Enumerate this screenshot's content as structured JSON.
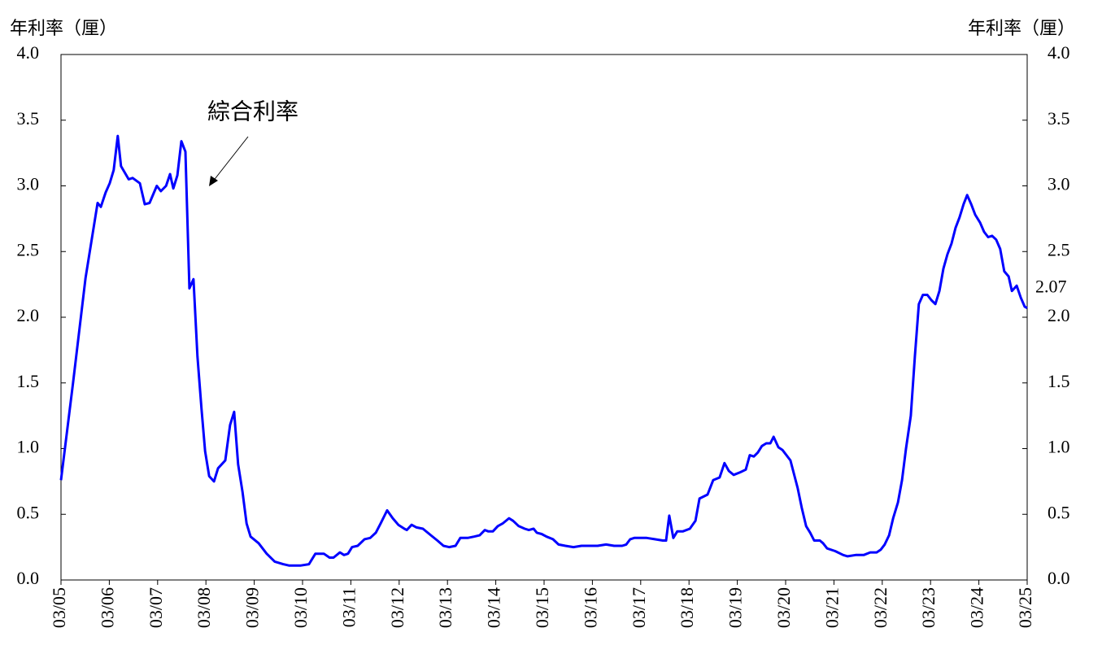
{
  "chart_data": {
    "type": "line",
    "ylabel": "年利率（厘）",
    "y2label": "年利率（厘）",
    "xlim": [
      0,
      240
    ],
    "xticks": [
      {
        "value": 0,
        "label": "03/05"
      },
      {
        "value": 12,
        "label": "03/06"
      },
      {
        "value": 24,
        "label": "03/07"
      },
      {
        "value": 36,
        "label": "03/08"
      },
      {
        "value": 48,
        "label": "03/09"
      },
      {
        "value": 60,
        "label": "03/10"
      },
      {
        "value": 72,
        "label": "03/11"
      },
      {
        "value": 84,
        "label": "03/12"
      },
      {
        "value": 96,
        "label": "03/13"
      },
      {
        "value": 108,
        "label": "03/14"
      },
      {
        "value": 120,
        "label": "03/15"
      },
      {
        "value": 132,
        "label": "03/16"
      },
      {
        "value": 144,
        "label": "03/17"
      },
      {
        "value": 156,
        "label": "03/18"
      },
      {
        "value": 168,
        "label": "03/19"
      },
      {
        "value": 180,
        "label": "03/20"
      },
      {
        "value": 192,
        "label": "03/21"
      },
      {
        "value": 204,
        "label": "03/22"
      },
      {
        "value": 216,
        "label": "03/23"
      },
      {
        "value": 228,
        "label": "03/24"
      },
      {
        "value": 240,
        "label": "03/25"
      }
    ],
    "ylim": [
      0,
      4
    ],
    "yticks": [
      {
        "value": 0,
        "label": "0.0"
      },
      {
        "value": 0.5,
        "label": "0.5"
      },
      {
        "value": 1,
        "label": "1.0"
      },
      {
        "value": 1.5,
        "label": "1.5"
      },
      {
        "value": 2,
        "label": "2.0"
      },
      {
        "value": 2.5,
        "label": "2.5"
      },
      {
        "value": 3,
        "label": "3.0"
      },
      {
        "value": 3.5,
        "label": "3.5"
      },
      {
        "value": 4,
        "label": "4.0"
      }
    ],
    "y2lim": [
      0,
      4
    ],
    "y2ticks": [
      {
        "value": 0,
        "label": "0.0"
      },
      {
        "value": 0.5,
        "label": "0.5"
      },
      {
        "value": 1,
        "label": "1.0"
      },
      {
        "value": 1.5,
        "label": "1.5"
      },
      {
        "value": 2,
        "label": "2.0"
      },
      {
        "value": 2.5,
        "label": "2.5"
      },
      {
        "value": 3,
        "label": "3.0"
      },
      {
        "value": 3.5,
        "label": "3.5"
      },
      {
        "value": 4,
        "label": "4.0"
      }
    ],
    "series": [
      {
        "name": "綜合利率",
        "color": "#0000ff",
        "end_label": "2.07",
        "x": [
          0,
          3.0,
          6.1,
          9.1,
          9.9,
          11.1,
          12.1,
          13.1,
          14.1,
          14.9,
          16.8,
          17.8,
          19.6,
          20.8,
          22.0,
          23.8,
          24.8,
          26.1,
          27.1,
          27.9,
          28.9,
          29.9,
          30.9,
          31.9,
          32.9,
          33.9,
          34.9,
          35.8,
          36.8,
          38.0,
          39.0,
          40.8,
          42.0,
          43.0,
          44.0,
          45.1,
          46.1,
          47.1,
          49.1,
          51.1,
          53.1,
          55.2,
          56.6,
          59.6,
          61.6,
          63.2,
          65.3,
          66.7,
          67.7,
          69.3,
          70.3,
          71.3,
          72.3,
          73.7,
          75.4,
          76.8,
          78.2,
          79.4,
          81.0,
          82.4,
          83.8,
          85.3,
          85.9,
          87.1,
          88.3,
          89.9,
          91.9,
          93.5,
          95.0,
          96.4,
          98.0,
          99.2,
          101.0,
          102.6,
          104.0,
          105.3,
          106.1,
          107.3,
          108.5,
          109.7,
          111.3,
          112.3,
          113.7,
          115.2,
          116.2,
          117.4,
          118.2,
          119.4,
          120.6,
          122.2,
          123.6,
          125.3,
          127.3,
          129.3,
          131.3,
          133.3,
          135.4,
          137.4,
          139.4,
          140.4,
          141.4,
          142.4,
          145.5,
          147.5,
          149.5,
          150.3,
          151.1,
          152.1,
          153.1,
          154.5,
          156.2,
          157.6,
          158.6,
          160.6,
          162.0,
          163.6,
          164.8,
          165.9,
          167.1,
          168.7,
          170.1,
          171.1,
          172.1,
          173.1,
          174.1,
          175.2,
          176.2,
          177.0,
          178.2,
          179.2,
          181.2,
          183.0,
          184.0,
          185.1,
          186.1,
          187.1,
          188.5,
          189.3,
          190.3,
          192.3,
          194.3,
          195.4,
          197.4,
          199.4,
          201.0,
          202.6,
          203.6,
          204.6,
          205.7,
          206.7,
          207.9,
          208.9,
          209.9,
          211.1,
          212.1,
          213.1,
          214.1,
          215.2,
          216.2,
          217.2,
          218.2,
          219.2,
          220.2,
          221.2,
          222.2,
          223.2,
          224.2,
          225.1,
          226.1,
          227.1,
          228.3,
          229.3,
          230.3,
          231.3,
          232.3,
          233.3,
          234.3,
          235.4,
          236.2,
          237.4,
          238.4,
          239.4,
          240
        ],
        "values": [
          0.76,
          1.5,
          2.3,
          2.87,
          2.84,
          2.95,
          3.02,
          3.12,
          3.38,
          3.15,
          3.05,
          3.06,
          3.02,
          2.86,
          2.87,
          3.0,
          2.96,
          3.0,
          3.09,
          2.98,
          3.08,
          3.34,
          3.26,
          2.22,
          2.29,
          1.7,
          1.3,
          0.98,
          0.79,
          0.75,
          0.85,
          0.91,
          1.18,
          1.28,
          0.88,
          0.67,
          0.43,
          0.33,
          0.28,
          0.2,
          0.14,
          0.12,
          0.11,
          0.11,
          0.12,
          0.2,
          0.2,
          0.17,
          0.17,
          0.21,
          0.19,
          0.2,
          0.25,
          0.26,
          0.31,
          0.32,
          0.36,
          0.43,
          0.53,
          0.47,
          0.42,
          0.39,
          0.38,
          0.42,
          0.4,
          0.39,
          0.34,
          0.3,
          0.26,
          0.25,
          0.26,
          0.32,
          0.32,
          0.33,
          0.34,
          0.38,
          0.37,
          0.37,
          0.41,
          0.43,
          0.47,
          0.45,
          0.41,
          0.39,
          0.38,
          0.39,
          0.36,
          0.35,
          0.33,
          0.31,
          0.27,
          0.26,
          0.25,
          0.26,
          0.26,
          0.26,
          0.27,
          0.26,
          0.26,
          0.27,
          0.31,
          0.32,
          0.32,
          0.31,
          0.3,
          0.3,
          0.49,
          0.32,
          0.37,
          0.37,
          0.39,
          0.45,
          0.62,
          0.65,
          0.76,
          0.78,
          0.89,
          0.83,
          0.8,
          0.82,
          0.84,
          0.95,
          0.94,
          0.97,
          1.02,
          1.04,
          1.04,
          1.09,
          1.01,
          0.99,
          0.91,
          0.7,
          0.55,
          0.41,
          0.36,
          0.3,
          0.3,
          0.28,
          0.24,
          0.22,
          0.19,
          0.18,
          0.19,
          0.19,
          0.21,
          0.21,
          0.23,
          0.27,
          0.34,
          0.47,
          0.59,
          0.76,
          1.0,
          1.25,
          1.7,
          2.1,
          2.17,
          2.17,
          2.13,
          2.1,
          2.2,
          2.37,
          2.48,
          2.56,
          2.68,
          2.76,
          2.86,
          2.93,
          2.86,
          2.78,
          2.72,
          2.65,
          2.61,
          2.62,
          2.59,
          2.52,
          2.35,
          2.31,
          2.2,
          2.24,
          2.15,
          2.08,
          2.07
        ]
      }
    ]
  }
}
